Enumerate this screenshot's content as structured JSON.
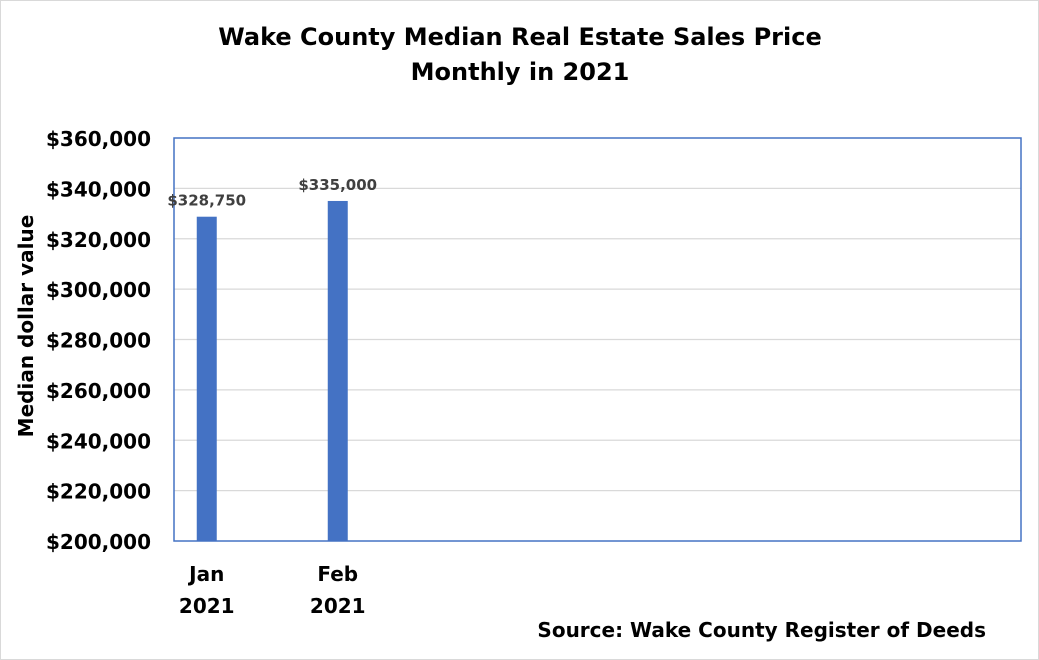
{
  "chart_data": {
    "type": "bar",
    "title_lines": [
      "Wake County Median Real Estate Sales Price",
      "Monthly in 2021"
    ],
    "ylabel": "Median dollar value",
    "xlabel": "",
    "categories": [
      [
        "Jan",
        "2021"
      ],
      [
        "Feb",
        "2021"
      ]
    ],
    "category_slots": 12,
    "values": [
      328750,
      335000
    ],
    "data_labels": [
      "$328,750",
      "$335,000"
    ],
    "ylim": [
      200000,
      360000
    ],
    "yticks": [
      200000,
      220000,
      240000,
      260000,
      280000,
      300000,
      320000,
      340000,
      360000
    ],
    "ytick_labels": [
      "$200,000",
      "$220,000",
      "$240,000",
      "$260,000",
      "$280,000",
      "$300,000",
      "$320,000",
      "$340,000",
      "$360,000"
    ],
    "grid": true,
    "legend": "none",
    "bar_color": "#4472C4",
    "plot_border_color": "#4472C4",
    "grid_color": "#d9d9d9",
    "data_label_color": "#404040",
    "source": "Source: Wake County Register of Deeds"
  }
}
